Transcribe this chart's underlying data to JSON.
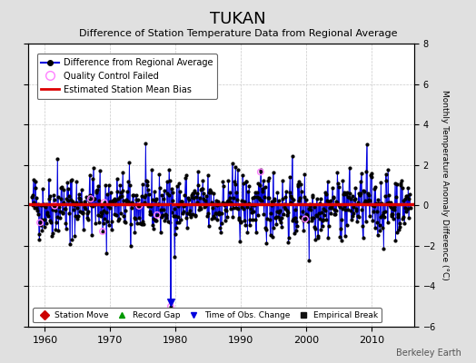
{
  "title": "TUKAN",
  "subtitle": "Difference of Station Temperature Data from Regional Average",
  "ylabel": "Monthly Temperature Anomaly Difference (°C)",
  "xlabel_credit": "Berkeley Earth",
  "xlim": [
    1957.5,
    2016.5
  ],
  "ylim": [
    -6,
    8
  ],
  "yticks": [
    -6,
    -4,
    -2,
    0,
    2,
    4,
    6,
    8
  ],
  "xticks": [
    1960,
    1970,
    1980,
    1990,
    2000,
    2010
  ],
  "bias_line_y": 0.05,
  "obs_change_x": 1979.25,
  "obs_change_bottom": -5.0,
  "background_color": "#e0e0e0",
  "plot_bg_color": "#ffffff",
  "line_color": "#0000dd",
  "dot_color": "#000000",
  "bias_color": "#dd0000",
  "qc_color": "#ff80ff",
  "seed": 42,
  "years_start": 1958,
  "years_end": 2015
}
